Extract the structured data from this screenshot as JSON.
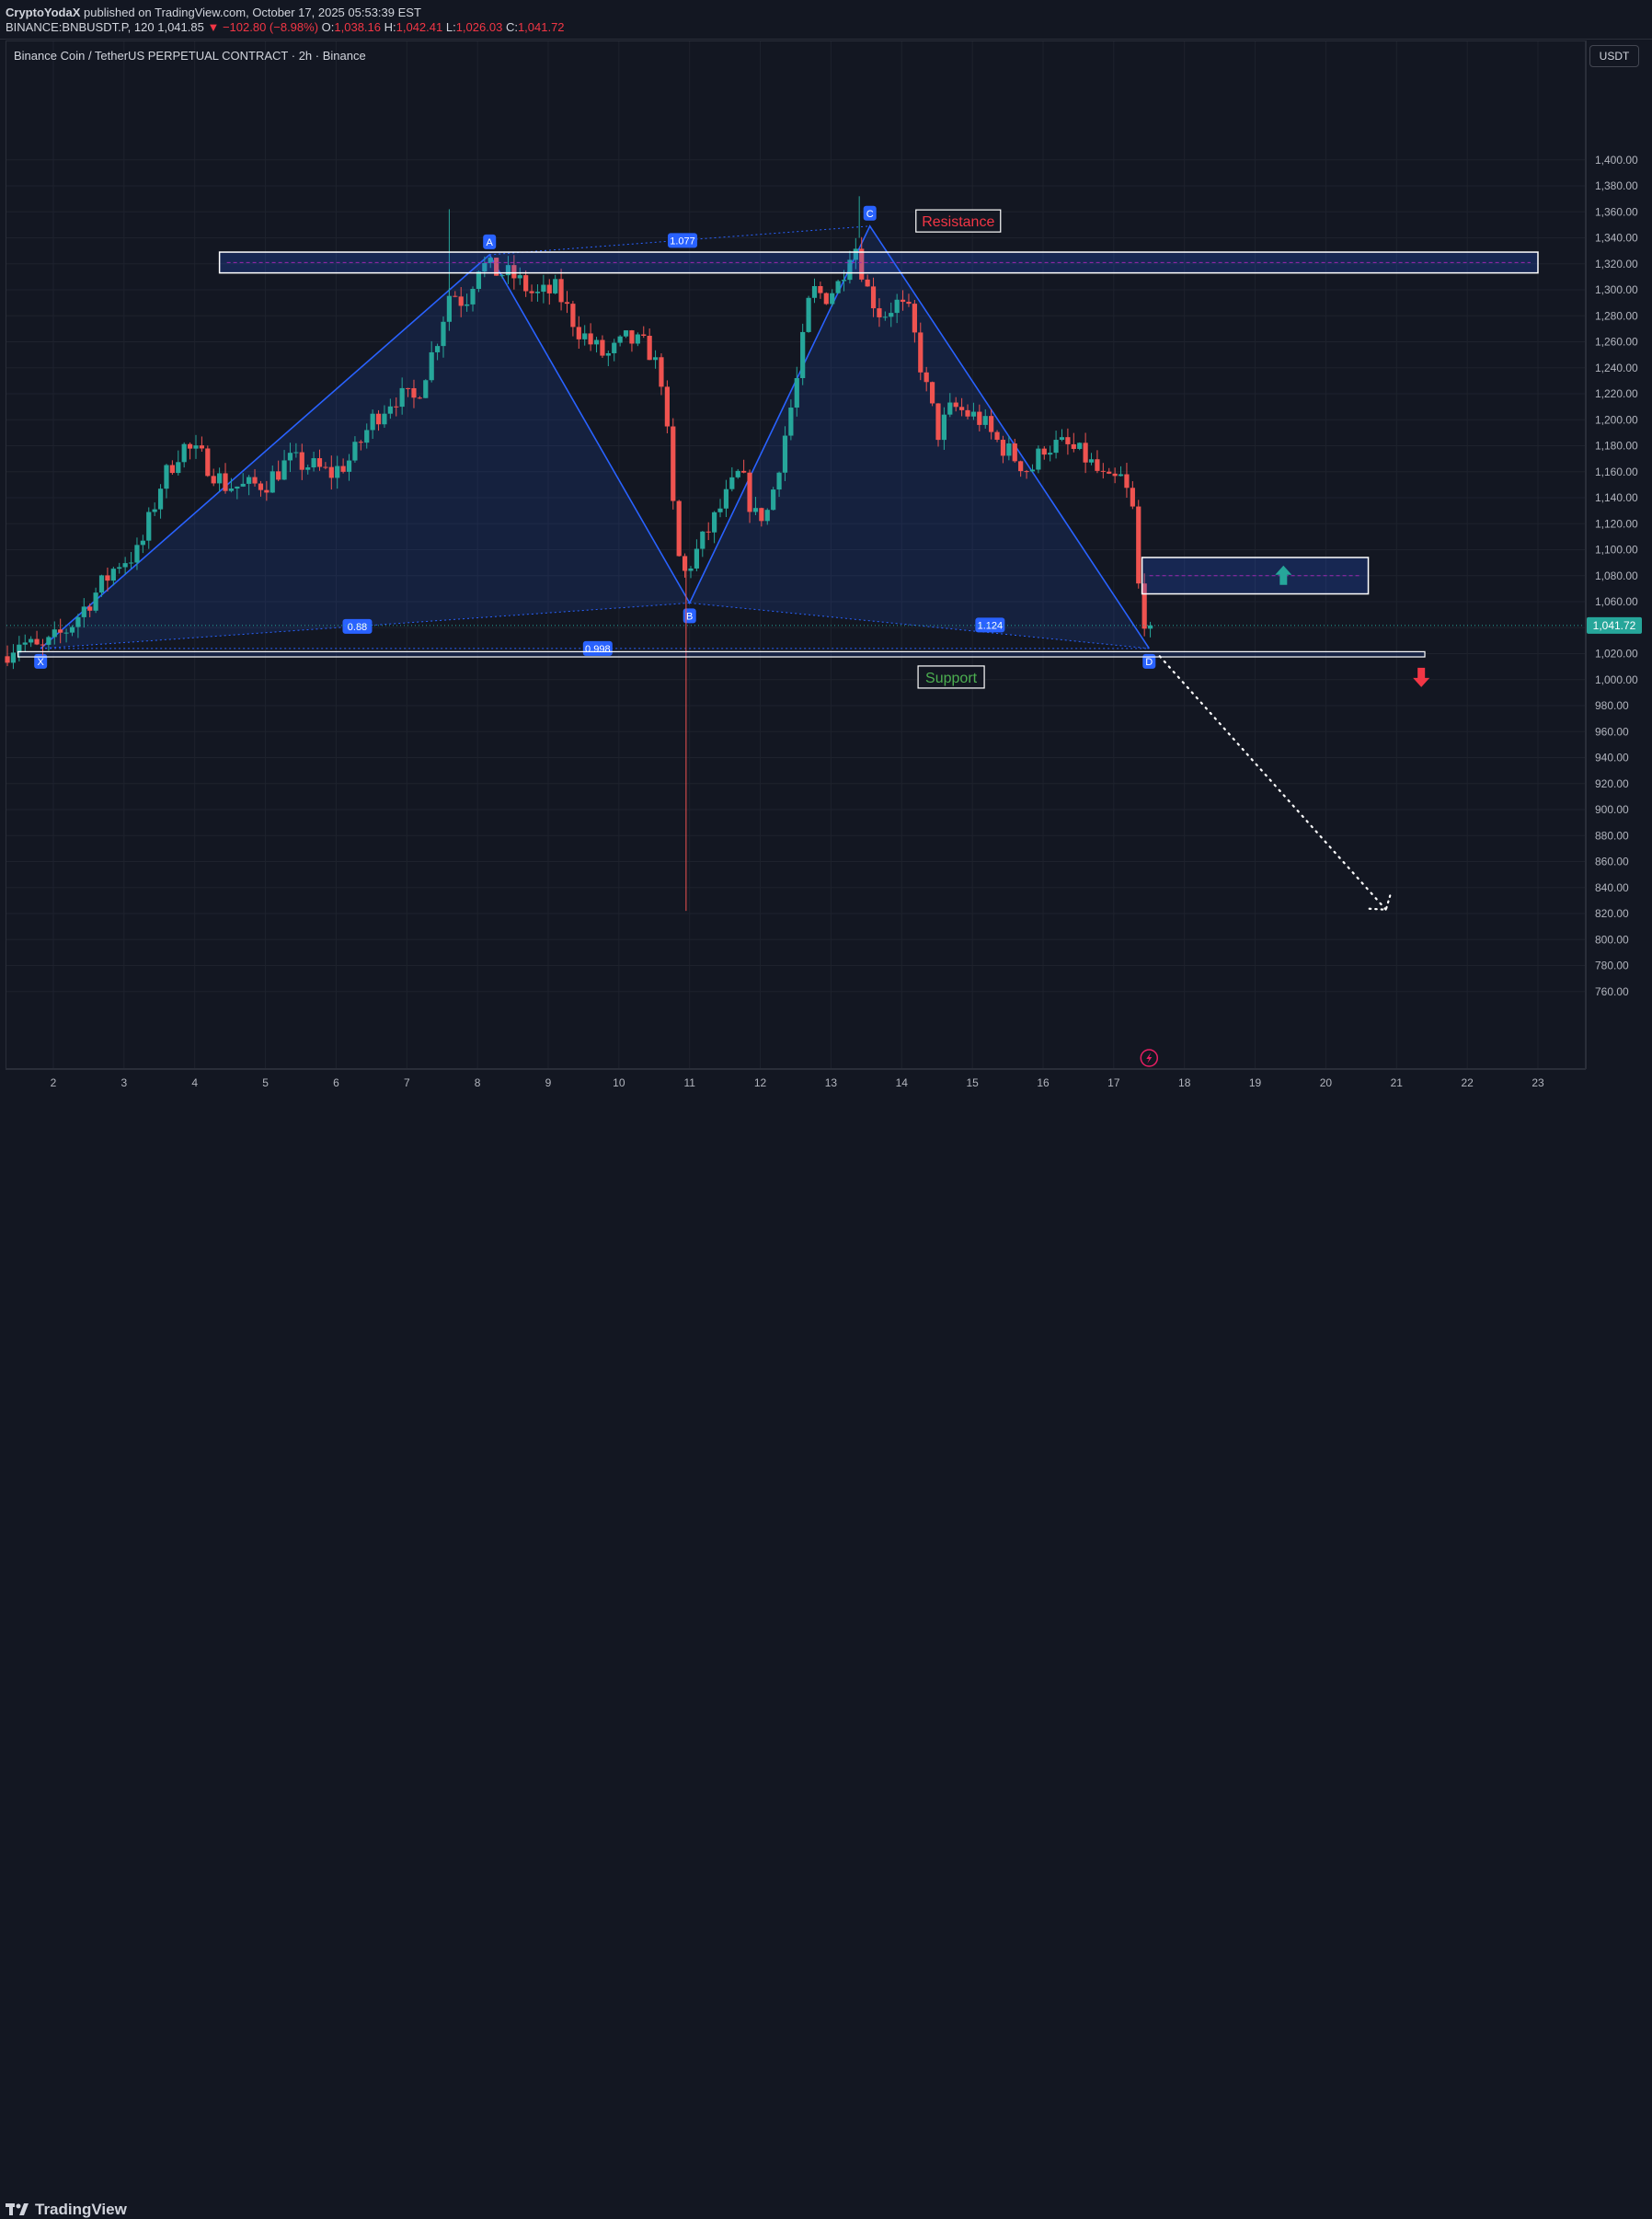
{
  "header": {
    "author": "CryptoYodaX",
    "published_text": " published on TradingView.com, October 17, 2025 05:53:39 EST",
    "symbol": "BINANCE:BNBUSDT.P, 120",
    "last": "1,041.85",
    "change": "▼ −102.80 (−8.98%)",
    "o_label": "O:",
    "o_value": "1,038.16",
    "h_label": "H:",
    "h_value": "1,042.41",
    "l_label": "L:",
    "l_value": "1,026.03",
    "c_label": "C:",
    "c_value": "1,041.72"
  },
  "chart_title": "Binance Coin / TetherUS PERPETUAL CONTRACT · 2h · Binance",
  "currency": "USDT",
  "brand": "TradingView",
  "colors": {
    "background": "#131722",
    "up": "#26a69a",
    "down": "#ef5350",
    "pattern_line": "#2962ff",
    "pattern_fill": "rgba(41,98,255,0.13)",
    "price_label_bg": "#26a69a",
    "resistance_text": "#f23645",
    "support_text": "#4caf50"
  },
  "chart_data": {
    "type": "candlestick",
    "ylim": [
      745,
      1418
    ],
    "x_range_days": [
      1.3,
      23.6
    ],
    "y_ticks": [
      760,
      780,
      800,
      820,
      840,
      860,
      880,
      900,
      920,
      940,
      960,
      980,
      1000,
      1020,
      1040,
      1060,
      1080,
      1100,
      1120,
      1140,
      1160,
      1180,
      1200,
      1220,
      1240,
      1260,
      1280,
      1300,
      1320,
      1340,
      1360,
      1380,
      1400
    ],
    "y_tick_labels": [
      "760.00",
      "780.00",
      "800.00",
      "820.00",
      "840.00",
      "860.00",
      "880.00",
      "900.00",
      "920.00",
      "940.00",
      "960.00",
      "980.00",
      "1,000.00",
      "1,020.00",
      "1,040.00",
      "1,060.00",
      "1,080.00",
      "1,100.00",
      "1,120.00",
      "1,140.00",
      "1,160.00",
      "1,180.00",
      "1,200.00",
      "1,220.00",
      "1,240.00",
      "1,260.00",
      "1,280.00",
      "1,300.00",
      "1,320.00",
      "1,340.00",
      "1,360.00",
      "1,380.00",
      "1,400.00"
    ],
    "x_ticks": [
      2,
      3,
      4,
      5,
      6,
      7,
      8,
      9,
      10,
      11,
      12,
      13,
      14,
      15,
      16,
      17,
      18,
      19,
      20,
      21,
      22,
      23
    ],
    "x_tick_labels": [
      "2",
      "3",
      "4",
      "5",
      "6",
      "7",
      "8",
      "9",
      "10",
      "11",
      "12",
      "13",
      "14",
      "15",
      "16",
      "17",
      "18",
      "19",
      "20",
      "21",
      "22",
      "23"
    ],
    "current_price": 1041.72,
    "current_price_label": "1,041.72",
    "price_path": [
      [
        1.35,
        1018
      ],
      [
        1.6,
        1030
      ],
      [
        1.9,
        1022
      ],
      [
        2.3,
        1040
      ],
      [
        2.7,
        1068
      ],
      [
        3.0,
        1090
      ],
      [
        3.3,
        1098
      ],
      [
        3.6,
        1150
      ],
      [
        3.9,
        1180
      ],
      [
        4.2,
        1170
      ],
      [
        4.5,
        1150
      ],
      [
        4.8,
        1148
      ],
      [
        5.1,
        1152
      ],
      [
        5.4,
        1168
      ],
      [
        5.7,
        1165
      ],
      [
        6.0,
        1158
      ],
      [
        6.3,
        1170
      ],
      [
        6.6,
        1200
      ],
      [
        6.9,
        1218
      ],
      [
        7.2,
        1215
      ],
      [
        7.5,
        1260
      ],
      [
        7.7,
        1300
      ],
      [
        7.9,
        1290
      ],
      [
        8.1,
        1320
      ],
      [
        8.3,
        1315
      ],
      [
        8.6,
        1310
      ],
      [
        8.9,
        1295
      ],
      [
        9.2,
        1300
      ],
      [
        9.5,
        1270
      ],
      [
        9.7,
        1258
      ],
      [
        9.9,
        1248
      ],
      [
        10.2,
        1262
      ],
      [
        10.5,
        1255
      ],
      [
        10.7,
        1230
      ],
      [
        10.9,
        1100
      ],
      [
        11.0,
        1080
      ],
      [
        11.3,
        1110
      ],
      [
        11.6,
        1140
      ],
      [
        11.8,
        1160
      ],
      [
        12.0,
        1125
      ],
      [
        12.2,
        1130
      ],
      [
        12.4,
        1180
      ],
      [
        12.6,
        1230
      ],
      [
        12.8,
        1300
      ],
      [
        13.0,
        1295
      ],
      [
        13.2,
        1305
      ],
      [
        13.4,
        1340
      ],
      [
        13.6,
        1300
      ],
      [
        13.8,
        1280
      ],
      [
        14.0,
        1290
      ],
      [
        14.2,
        1280
      ],
      [
        14.4,
        1230
      ],
      [
        14.6,
        1190
      ],
      [
        14.8,
        1210
      ],
      [
        15.0,
        1205
      ],
      [
        15.2,
        1200
      ],
      [
        15.4,
        1185
      ],
      [
        15.6,
        1175
      ],
      [
        15.9,
        1160
      ],
      [
        16.1,
        1180
      ],
      [
        16.4,
        1180
      ],
      [
        16.7,
        1170
      ],
      [
        17.0,
        1150
      ],
      [
        17.2,
        1155
      ],
      [
        17.35,
        1130
      ],
      [
        17.45,
        1060
      ],
      [
        17.55,
        1041.72
      ]
    ],
    "wick_extremes": [
      [
        7.6,
        1362
      ],
      [
        10.95,
        822
      ],
      [
        13.4,
        1372
      ]
    ],
    "harmonic_pattern": {
      "points": [
        {
          "label": "X",
          "day": 1.82,
          "price": 1024
        },
        {
          "label": "A",
          "day": 8.17,
          "price": 1327
        },
        {
          "label": "B",
          "day": 11.0,
          "price": 1059
        },
        {
          "label": "C",
          "day": 13.55,
          "price": 1349
        },
        {
          "label": "D",
          "day": 17.5,
          "price": 1024
        }
      ],
      "ratios": [
        {
          "label": "0.88",
          "day": 6.3,
          "price": 1041
        },
        {
          "label": "1.077",
          "day": 10.9,
          "price": 1338
        },
        {
          "label": "1.124",
          "day": 15.25,
          "price": 1042
        },
        {
          "label": "0.998",
          "day": 9.7,
          "price": 1024
        }
      ]
    },
    "zones": [
      {
        "name": "resistance-zone",
        "from_day": 4.35,
        "to_day": 23.0,
        "low": 1313,
        "high": 1329
      },
      {
        "name": "target-zone",
        "from_day": 17.4,
        "to_day": 20.6,
        "low": 1066,
        "high": 1094
      },
      {
        "name": "support-zone",
        "from_day": 1.5,
        "to_day": 21.4,
        "low": 1017.5,
        "high": 1021.5
      }
    ],
    "annotations": [
      {
        "text": "Resistance",
        "day": 14.8,
        "price": 1353
      },
      {
        "text": "Support",
        "day": 14.7,
        "price": 1002
      }
    ],
    "projection": {
      "from_day": 17.65,
      "from_price": 1018,
      "to_day": 20.85,
      "to_price": 823
    }
  }
}
